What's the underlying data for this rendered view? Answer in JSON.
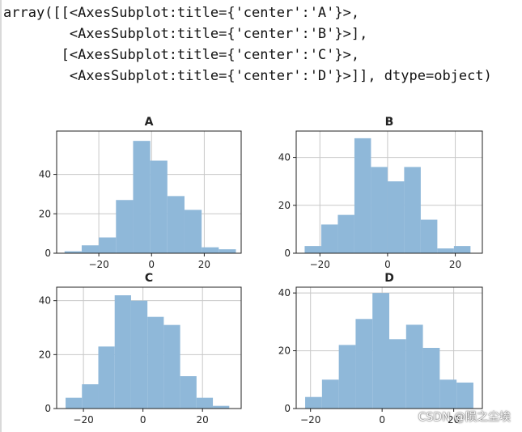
{
  "output_text": {
    "lines": [
      "array([[<AxesSubplot:title={'center':'A'}>,",
      "        <AxesSubplot:title={'center':'B'}>],",
      "       [<AxesSubplot:title={'center':'C'}>,",
      "        <AxesSubplot:title={'center':'D'}>]], dtype=object)"
    ]
  },
  "watermark": "CSDN @陨之尘埃",
  "colors": {
    "bar": "#8fb8d9",
    "grid": "#c8c8c8",
    "axis": "#222222"
  },
  "chart_data": [
    {
      "type": "bar",
      "title": "A",
      "xlim": [
        -36,
        34
      ],
      "ylim": [
        0,
        62
      ],
      "xticks": [
        -20,
        0,
        20
      ],
      "yticks": [
        0,
        20,
        40
      ],
      "bin_edges": [
        -33,
        -26.5,
        -20,
        -13.5,
        -7,
        -0.5,
        6,
        12.5,
        19,
        25.5,
        32
      ],
      "values": [
        1,
        4,
        8,
        27,
        57,
        47,
        29,
        22,
        3,
        2
      ]
    },
    {
      "type": "bar",
      "title": "B",
      "xlim": [
        -27,
        28
      ],
      "ylim": [
        0,
        51
      ],
      "xticks": [
        -20,
        0,
        20
      ],
      "yticks": [
        0,
        20,
        40
      ],
      "bin_edges": [
        -24.5,
        -19.6,
        -14.7,
        -9.8,
        -4.9,
        0,
        4.9,
        9.8,
        14.7,
        19.6,
        24.5
      ],
      "values": [
        3,
        12,
        16,
        48,
        36,
        30,
        36,
        14,
        2,
        3
      ]
    },
    {
      "type": "bar",
      "title": "C",
      "xlim": [
        -29,
        33
      ],
      "ylim": [
        0,
        45
      ],
      "xticks": [
        -20,
        0,
        20
      ],
      "yticks": [
        0,
        20,
        40
      ],
      "bin_edges": [
        -26,
        -20.5,
        -15,
        -9.5,
        -4,
        1.5,
        7,
        12.5,
        18,
        23.5,
        29
      ],
      "values": [
        4,
        9,
        23,
        42,
        40,
        34,
        31,
        12,
        4,
        1
      ]
    },
    {
      "type": "bar",
      "title": "D",
      "xlim": [
        -24,
        28
      ],
      "ylim": [
        0,
        42
      ],
      "xticks": [
        -20,
        0,
        20
      ],
      "yticks": [
        0,
        20,
        40
      ],
      "bin_edges": [
        -21.5,
        -16.8,
        -12.1,
        -7.4,
        -2.7,
        2,
        6.7,
        11.4,
        16.1,
        20.8,
        25.5
      ],
      "values": [
        4,
        10,
        22,
        31,
        40,
        24,
        29,
        21,
        10,
        9
      ]
    }
  ]
}
